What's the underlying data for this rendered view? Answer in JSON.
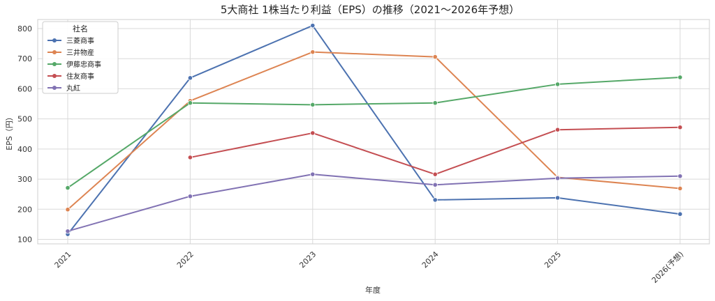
{
  "chart_data": {
    "type": "line",
    "title": "5大商社 1株当たり利益（EPS）の推移（2021〜2026年予想）",
    "xlabel": "年度",
    "ylabel": "EPS（円）",
    "categories": [
      "2021",
      "2022",
      "2023",
      "2024",
      "2025",
      "2026(予想)"
    ],
    "yticks": [
      100,
      200,
      300,
      400,
      500,
      600,
      700,
      800
    ],
    "ylim": [
      85,
      830
    ],
    "grid": true,
    "legend": {
      "title": "社名",
      "position": "top-left"
    },
    "series": [
      {
        "name": "三菱商事",
        "color": "#4c72b0",
        "values": [
          117,
          636,
          810,
          231,
          238,
          184
        ]
      },
      {
        "name": "三井物産",
        "color": "#dd8452",
        "values": [
          199,
          560,
          722,
          706,
          306,
          269
        ]
      },
      {
        "name": "伊藤忠商事",
        "color": "#55a868",
        "values": [
          271,
          553,
          547,
          553,
          615,
          638
        ]
      },
      {
        "name": "住友商事",
        "color": "#c44e52",
        "values": [
          null,
          372,
          453,
          316,
          464,
          472
        ]
      },
      {
        "name": "丸紅",
        "color": "#8172b3",
        "values": [
          127,
          243,
          316,
          281,
          303,
          310
        ]
      }
    ]
  }
}
